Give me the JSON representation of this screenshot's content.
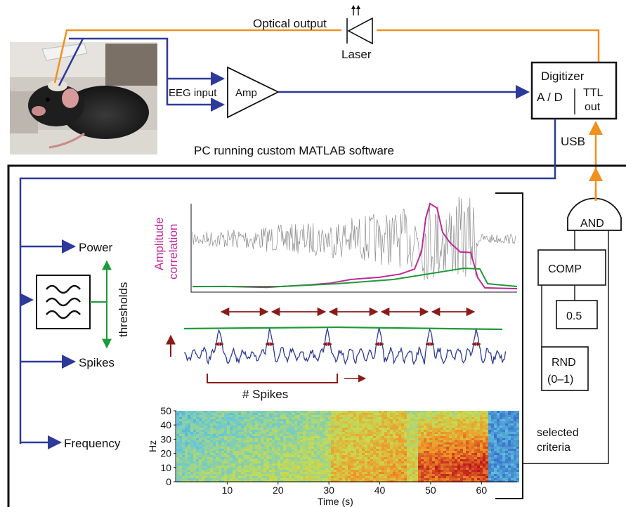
{
  "labels": {
    "optical_output": "Optical output",
    "laser": "Laser",
    "eeg_input": "EEG input",
    "amp": "Amp",
    "digitizer": "Digitizer",
    "ad": "A / D",
    "ttl_line1": "TTL",
    "ttl_line2": "out",
    "usb": "USB",
    "pc_title": "PC running custom MATLAB software",
    "power": "Power",
    "spikes": "Spikes",
    "frequency": "Frequency",
    "thresholds": "thresholds",
    "amplitude_line1": "Amplitude",
    "amplitude_line2": "correlation",
    "spikes_count": "# Spikes",
    "and_gate": "AND",
    "comp": "COMP",
    "const_value": "0.5",
    "rnd_line1": "RND",
    "rnd_line2": "(0–1)",
    "selected_line1": "selected",
    "selected_line2": "criteria"
  },
  "spectrogram": {
    "ylabel": "Hz",
    "xlabel": "Time (s)",
    "yticks": [
      "0",
      "10",
      "20",
      "30",
      "40",
      "50"
    ],
    "xticks": [
      "10",
      "20",
      "30",
      "40",
      "50",
      "60"
    ],
    "xrange": [
      0,
      67
    ],
    "yrange": [
      0,
      50
    ]
  },
  "colors": {
    "signal_blue": "#2d3a99",
    "optical_orange": "#f0901e",
    "correlation_magenta": "#c0279a",
    "threshold_green": "#1f9a3a",
    "interval_darkred": "#8b1a1a",
    "eeg_gray": "#8c8c8c"
  }
}
